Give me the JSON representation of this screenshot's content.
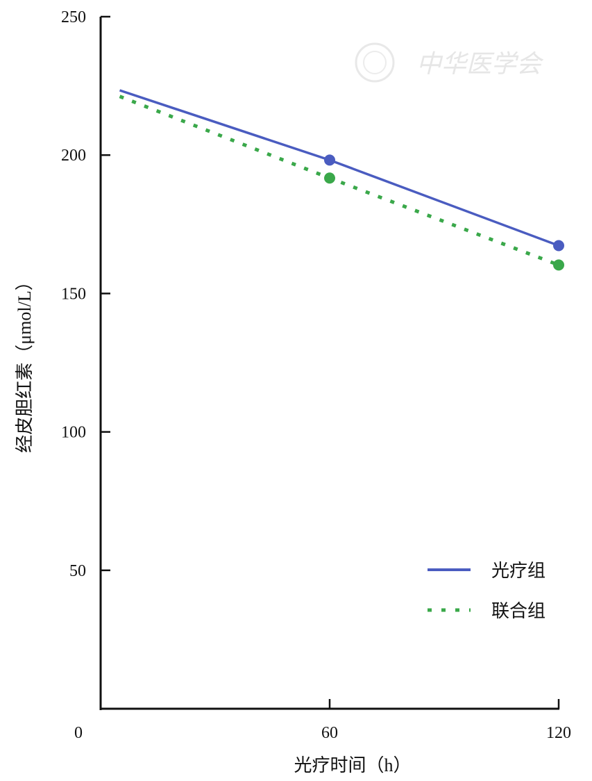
{
  "watermark": "中华医学会",
  "chart_data": {
    "type": "line",
    "xlabel": "光疗时间（h）",
    "ylabel": "经皮胆红素（μmol/L）",
    "xlim": [
      0,
      120
    ],
    "ylim": [
      0,
      250
    ],
    "xticks": [
      0,
      60,
      120
    ],
    "yticks": [
      50,
      100,
      150,
      200,
      250
    ],
    "grid": false,
    "legend_position": "bottom-right",
    "series": [
      {
        "name": "光疗组",
        "color": "#4a5cc0",
        "style": "solid",
        "x": [
          5,
          60,
          120
        ],
        "y": [
          223.4,
          198.2,
          167.3
        ],
        "markers_at": [
          60,
          120
        ]
      },
      {
        "name": "联合组",
        "color": "#3aa84a",
        "style": "dotted",
        "x": [
          5,
          60,
          120
        ],
        "y": [
          221.2,
          191.7,
          160.3
        ],
        "markers_at": [
          60,
          120
        ]
      }
    ]
  }
}
